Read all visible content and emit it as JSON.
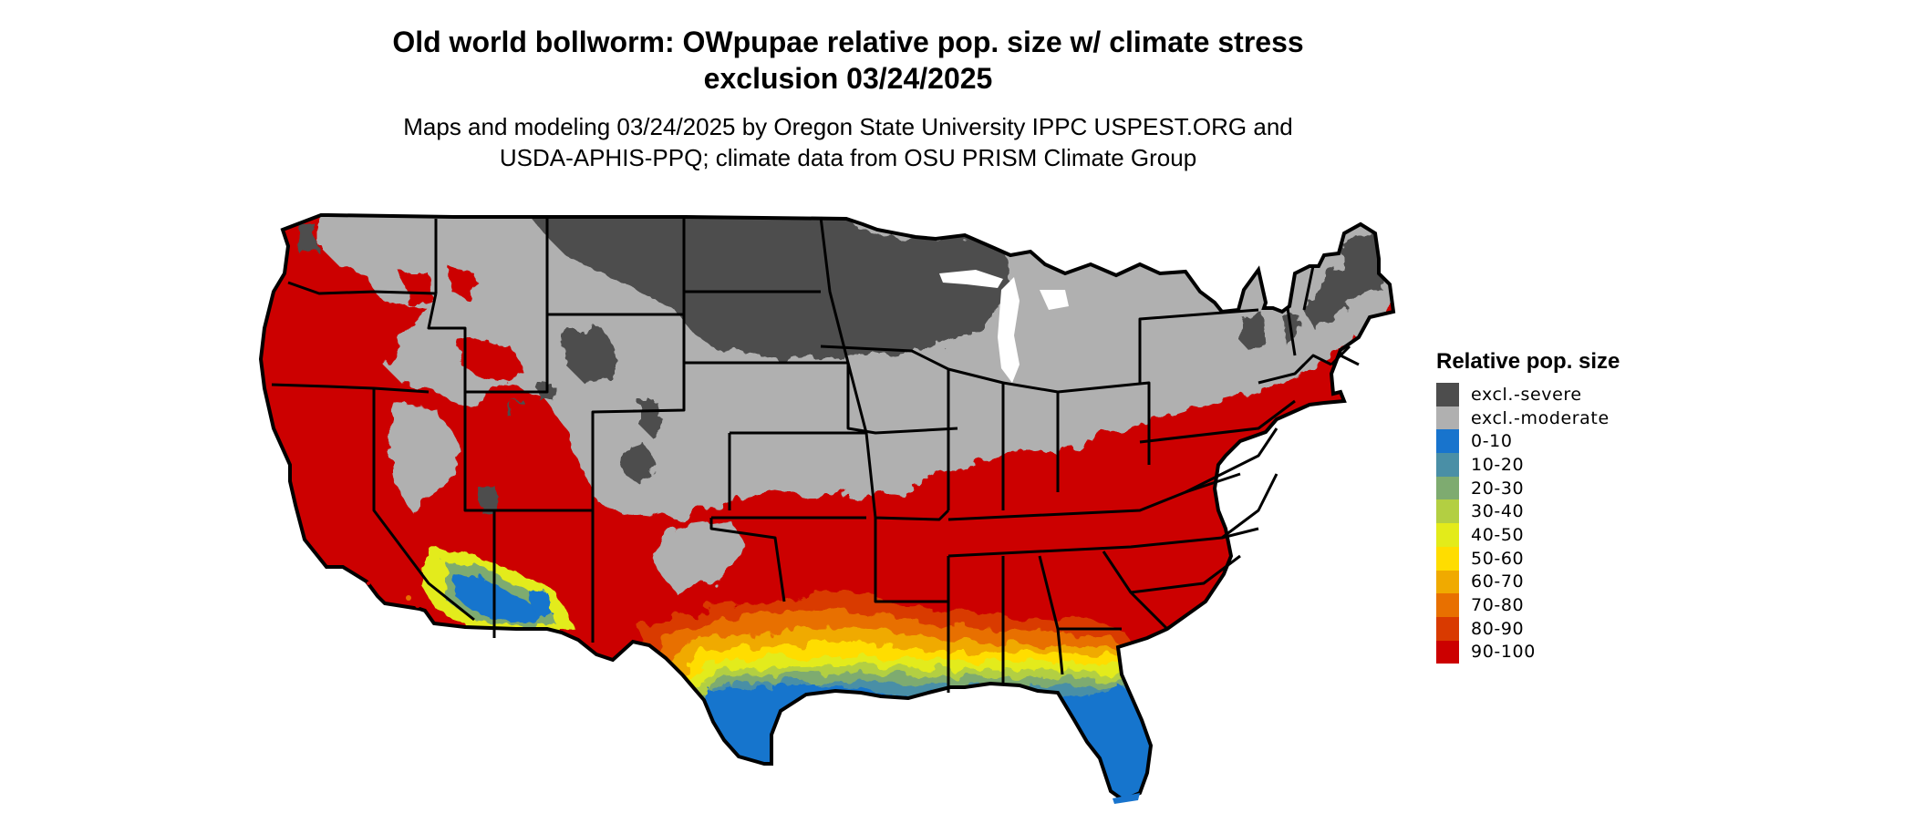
{
  "title": {
    "line1": "Old world bollworm: OWpupae relative pop. size w/ climate stress",
    "line2": "exclusion 03/24/2025"
  },
  "subtitle": {
    "line1": "Maps and modeling 03/24/2025 by Oregon State University IPPC USPEST.ORG and",
    "line2": "USDA-APHIS-PPQ; climate data from OSU PRISM Climate Group"
  },
  "legend": {
    "title": "Relative pop. size",
    "items": [
      {
        "label": "excl.-severe",
        "color": "#4d4d4d"
      },
      {
        "label": "excl.-moderate",
        "color": "#b0b0b0"
      },
      {
        "label": "0-10",
        "color": "#1874cd"
      },
      {
        "label": "10-20",
        "color": "#4a8fa6"
      },
      {
        "label": "20-30",
        "color": "#7eab70"
      },
      {
        "label": "30-40",
        "color": "#b3cf42"
      },
      {
        "label": "40-50",
        "color": "#e3eb1a"
      },
      {
        "label": "50-60",
        "color": "#ffdd00"
      },
      {
        "label": "60-70",
        "color": "#f0aa00"
      },
      {
        "label": "70-80",
        "color": "#e87000"
      },
      {
        "label": "80-90",
        "color": "#d93a00"
      },
      {
        "label": "90-100",
        "color": "#cc0000"
      }
    ]
  },
  "map": {
    "region": "Contiguous United States",
    "zones": {
      "northern_severe_exclusion": "excl.-severe",
      "central_moderate_exclusion": "excl.-moderate",
      "southern_and_west_coast_suitable": "90-100",
      "gulf_coast_transition": "80-90 to 30-40",
      "florida_and_south_texas_low": "0-10",
      "arizona_desert_low": "0-10"
    }
  }
}
